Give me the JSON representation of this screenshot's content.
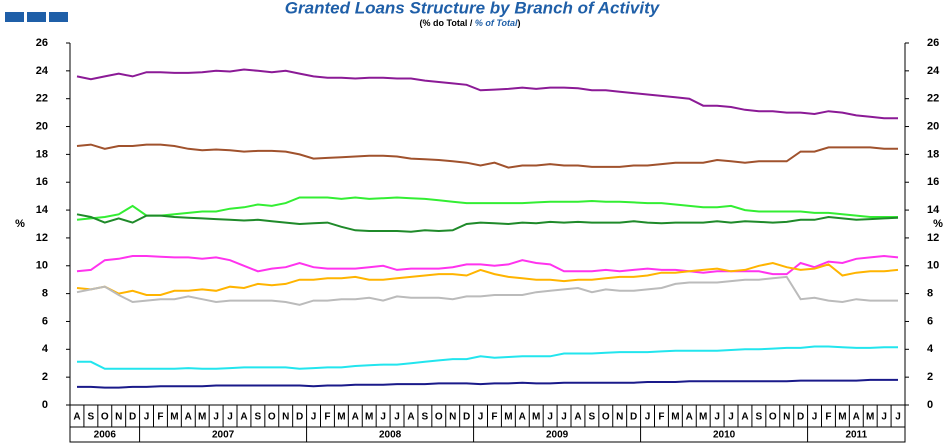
{
  "chart_data": {
    "type": "line",
    "title": "Granted Loans Structure by Branch of Activity",
    "subtitle": "(% do Total / ",
    "subtitle_en": "% of Total",
    "subtitle_end": ")",
    "ylabel": "%",
    "ylim": [
      0,
      26
    ],
    "yticks": [
      0,
      2,
      4,
      6,
      8,
      10,
      12,
      14,
      16,
      18,
      20,
      22,
      24,
      26
    ],
    "groups": [
      {
        "label": "2006",
        "months": [
          "A",
          "S",
          "O",
          "N",
          "D"
        ]
      },
      {
        "label": "2007",
        "months": [
          "J",
          "F",
          "M",
          "A",
          "M",
          "J",
          "J",
          "A",
          "S",
          "O",
          "N",
          "D"
        ]
      },
      {
        "label": "2008",
        "months": [
          "J",
          "F",
          "M",
          "A",
          "M",
          "J",
          "J",
          "A",
          "S",
          "O",
          "N",
          "D"
        ]
      },
      {
        "label": "2009",
        "months": [
          "J",
          "F",
          "M",
          "A",
          "M",
          "J",
          "J",
          "A",
          "S",
          "O",
          "N",
          "D"
        ]
      },
      {
        "label": "2010",
        "months": [
          "J",
          "F",
          "M",
          "A",
          "M",
          "J",
          "J",
          "A",
          "S",
          "O",
          "N",
          "D"
        ]
      },
      {
        "label": "2011",
        "months": [
          "J",
          "F",
          "M",
          "A",
          "M",
          "J",
          "J"
        ]
      }
    ],
    "series": [
      {
        "color": "#8b1a96",
        "values": [
          23.6,
          23.4,
          23.6,
          23.8,
          23.6,
          23.9,
          23.9,
          23.85,
          23.85,
          23.9,
          24.0,
          23.95,
          24.1,
          24.0,
          23.9,
          24.0,
          23.8,
          23.6,
          23.5,
          23.5,
          23.45,
          23.5,
          23.5,
          23.45,
          23.45,
          23.3,
          23.2,
          23.1,
          23.0,
          22.6,
          22.65,
          22.7,
          22.8,
          22.7,
          22.8,
          22.8,
          22.75,
          22.6,
          22.6,
          22.5,
          22.4,
          22.3,
          22.2,
          22.1,
          22.0,
          21.5,
          21.5,
          21.4,
          21.2,
          21.1,
          21.1,
          21.0,
          21.0,
          20.9,
          21.1,
          21.0,
          20.8,
          20.7,
          20.6,
          20.6
        ]
      },
      {
        "color": "#a0522d",
        "values": [
          18.6,
          18.7,
          18.4,
          18.6,
          18.6,
          18.7,
          18.7,
          18.6,
          18.4,
          18.3,
          18.35,
          18.3,
          18.2,
          18.25,
          18.25,
          18.2,
          18.0,
          17.7,
          17.75,
          17.8,
          17.85,
          17.9,
          17.9,
          17.85,
          17.7,
          17.65,
          17.6,
          17.5,
          17.4,
          17.2,
          17.4,
          17.05,
          17.2,
          17.2,
          17.3,
          17.2,
          17.2,
          17.1,
          17.1,
          17.1,
          17.2,
          17.2,
          17.3,
          17.4,
          17.4,
          17.4,
          17.6,
          17.5,
          17.4,
          17.5,
          17.5,
          17.5,
          18.2,
          18.2,
          18.5,
          18.5,
          18.5,
          18.5,
          18.4,
          18.4
        ]
      },
      {
        "color": "#33ee33",
        "values": [
          13.3,
          13.4,
          13.5,
          13.7,
          14.3,
          13.6,
          13.6,
          13.7,
          13.8,
          13.9,
          13.9,
          14.1,
          14.2,
          14.4,
          14.3,
          14.5,
          14.9,
          14.9,
          14.9,
          14.8,
          14.9,
          14.8,
          14.85,
          14.9,
          14.85,
          14.8,
          14.7,
          14.6,
          14.5,
          14.5,
          14.5,
          14.5,
          14.5,
          14.55,
          14.6,
          14.6,
          14.6,
          14.65,
          14.6,
          14.6,
          14.55,
          14.5,
          14.5,
          14.4,
          14.3,
          14.2,
          14.2,
          14.3,
          14.0,
          13.9,
          13.9,
          13.9,
          13.9,
          13.8,
          13.8,
          13.7,
          13.6,
          13.5,
          13.5,
          13.5
        ]
      },
      {
        "color": "#1f8a2a",
        "values": [
          13.7,
          13.5,
          13.1,
          13.4,
          13.1,
          13.6,
          13.6,
          13.5,
          13.45,
          13.4,
          13.35,
          13.3,
          13.25,
          13.3,
          13.2,
          13.1,
          13.0,
          13.05,
          13.1,
          12.8,
          12.55,
          12.5,
          12.5,
          12.5,
          12.45,
          12.55,
          12.5,
          12.55,
          13.0,
          13.1,
          13.05,
          13.0,
          13.1,
          13.05,
          13.15,
          13.1,
          13.15,
          13.1,
          13.1,
          13.1,
          13.2,
          13.1,
          13.05,
          13.1,
          13.1,
          13.1,
          13.2,
          13.1,
          13.2,
          13.15,
          13.1,
          13.15,
          13.3,
          13.3,
          13.5,
          13.4,
          13.3,
          13.35,
          13.4,
          13.45
        ]
      },
      {
        "color": "#ff33ee",
        "values": [
          9.6,
          9.7,
          10.4,
          10.5,
          10.7,
          10.7,
          10.65,
          10.6,
          10.6,
          10.5,
          10.6,
          10.4,
          10.0,
          9.6,
          9.8,
          9.9,
          10.2,
          9.9,
          9.8,
          9.8,
          9.8,
          9.9,
          10.0,
          9.7,
          9.8,
          9.8,
          9.8,
          9.9,
          10.1,
          10.1,
          10.0,
          10.1,
          10.4,
          10.2,
          10.1,
          9.6,
          9.6,
          9.6,
          9.7,
          9.6,
          9.7,
          9.8,
          9.7,
          9.7,
          9.6,
          9.5,
          9.6,
          9.6,
          9.6,
          9.6,
          9.4,
          9.4,
          10.2,
          9.9,
          10.3,
          10.2,
          10.5,
          10.6,
          10.7,
          10.6
        ]
      },
      {
        "color": "#ffb400",
        "values": [
          8.4,
          8.3,
          8.5,
          8.0,
          8.2,
          7.9,
          7.9,
          8.2,
          8.2,
          8.3,
          8.2,
          8.5,
          8.4,
          8.7,
          8.6,
          8.7,
          9.0,
          9.0,
          9.1,
          9.1,
          9.2,
          9.0,
          9.0,
          9.1,
          9.2,
          9.3,
          9.4,
          9.4,
          9.3,
          9.7,
          9.4,
          9.2,
          9.1,
          9.0,
          9.0,
          8.9,
          9.0,
          9.0,
          9.1,
          9.2,
          9.2,
          9.3,
          9.5,
          9.5,
          9.6,
          9.7,
          9.8,
          9.6,
          9.7,
          10.0,
          10.2,
          9.9,
          9.7,
          9.8,
          10.1,
          9.3,
          9.5,
          9.6,
          9.6,
          9.7
        ]
      },
      {
        "color": "#bbbbbb",
        "values": [
          8.1,
          8.3,
          8.5,
          7.9,
          7.4,
          7.5,
          7.6,
          7.6,
          7.8,
          7.6,
          7.4,
          7.5,
          7.5,
          7.5,
          7.5,
          7.4,
          7.2,
          7.5,
          7.5,
          7.6,
          7.6,
          7.7,
          7.5,
          7.8,
          7.7,
          7.7,
          7.7,
          7.6,
          7.8,
          7.8,
          7.9,
          7.9,
          7.9,
          8.1,
          8.2,
          8.3,
          8.4,
          8.1,
          8.3,
          8.2,
          8.2,
          8.3,
          8.4,
          8.7,
          8.8,
          8.8,
          8.8,
          8.9,
          9.0,
          9.0,
          9.1,
          9.2,
          7.6,
          7.7,
          7.5,
          7.4,
          7.6,
          7.5,
          7.5,
          7.5
        ]
      },
      {
        "color": "#22e5ee",
        "values": [
          3.1,
          3.1,
          2.6,
          2.6,
          2.6,
          2.6,
          2.6,
          2.6,
          2.65,
          2.6,
          2.6,
          2.65,
          2.7,
          2.7,
          2.7,
          2.7,
          2.6,
          2.65,
          2.7,
          2.7,
          2.8,
          2.85,
          2.9,
          2.9,
          3.0,
          3.1,
          3.2,
          3.3,
          3.3,
          3.5,
          3.4,
          3.45,
          3.5,
          3.5,
          3.5,
          3.7,
          3.7,
          3.7,
          3.75,
          3.8,
          3.8,
          3.8,
          3.85,
          3.9,
          3.9,
          3.9,
          3.9,
          3.95,
          4.0,
          4.0,
          4.05,
          4.1,
          4.1,
          4.2,
          4.2,
          4.15,
          4.1,
          4.1,
          4.15,
          4.15
        ]
      },
      {
        "color": "#1a1a8a",
        "values": [
          1.3,
          1.3,
          1.25,
          1.25,
          1.3,
          1.3,
          1.35,
          1.35,
          1.35,
          1.35,
          1.4,
          1.4,
          1.4,
          1.4,
          1.4,
          1.4,
          1.4,
          1.35,
          1.4,
          1.4,
          1.45,
          1.45,
          1.45,
          1.5,
          1.5,
          1.5,
          1.55,
          1.55,
          1.55,
          1.5,
          1.55,
          1.55,
          1.6,
          1.55,
          1.55,
          1.6,
          1.6,
          1.6,
          1.6,
          1.6,
          1.6,
          1.65,
          1.65,
          1.65,
          1.7,
          1.7,
          1.7,
          1.7,
          1.7,
          1.7,
          1.7,
          1.7,
          1.75,
          1.75,
          1.75,
          1.75,
          1.75,
          1.8,
          1.8,
          1.8
        ]
      }
    ]
  }
}
